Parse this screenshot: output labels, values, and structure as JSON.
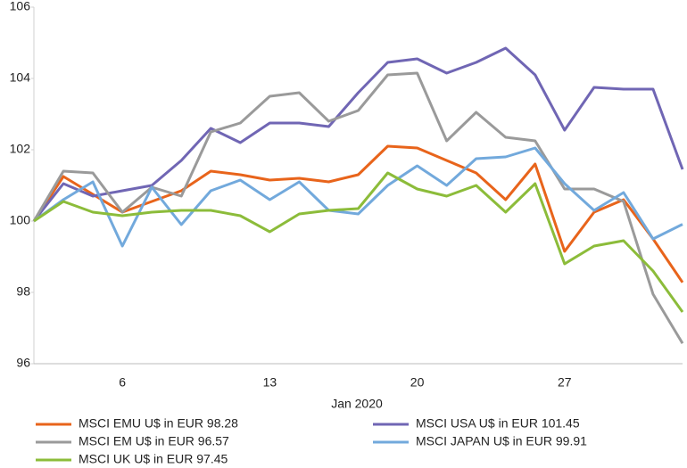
{
  "chart_data": {
    "type": "line",
    "x_label": "Jan 2020",
    "categories": [
      null,
      null,
      null,
      "6",
      null,
      null,
      null,
      null,
      "13",
      null,
      null,
      null,
      null,
      "20",
      null,
      null,
      null,
      null,
      "27",
      null,
      null,
      null,
      null
    ],
    "ylim": [
      96,
      106
    ],
    "yticks": [
      96,
      98,
      100,
      102,
      104,
      106
    ],
    "series": [
      {
        "name": "MSCI EMU U$ in EUR 98.28",
        "color": "#e8641b",
        "values": [
          100.0,
          101.25,
          100.75,
          100.25,
          100.55,
          100.85,
          101.4,
          101.3,
          101.15,
          101.2,
          101.1,
          101.3,
          102.1,
          102.05,
          101.7,
          101.35,
          100.6,
          101.6,
          99.15,
          100.25,
          100.6,
          99.5,
          98.28
        ]
      },
      {
        "name": "MSCI USA U$ in EUR 101.45",
        "color": "#7066b4",
        "values": [
          100.0,
          101.05,
          100.7,
          100.85,
          101.0,
          101.7,
          102.6,
          102.2,
          102.75,
          102.75,
          102.65,
          103.6,
          104.45,
          104.55,
          104.15,
          104.45,
          104.85,
          104.1,
          102.55,
          103.75,
          103.7,
          103.7,
          101.45
        ]
      },
      {
        "name": "MSCI EM U$ in EUR 96.57",
        "color": "#9a9a9a",
        "values": [
          100.0,
          101.4,
          101.35,
          100.25,
          100.95,
          100.7,
          102.5,
          102.75,
          103.5,
          103.6,
          102.8,
          103.1,
          104.1,
          104.15,
          102.25,
          103.05,
          102.35,
          102.25,
          100.9,
          100.9,
          100.55,
          97.95,
          96.57
        ]
      },
      {
        "name": "MSCI JAPAN U$ in EUR 99.91",
        "color": "#72a9dc",
        "values": [
          100.0,
          100.6,
          101.1,
          99.3,
          100.95,
          99.9,
          100.85,
          101.15,
          100.6,
          101.1,
          100.3,
          100.2,
          101.0,
          101.55,
          101.0,
          101.75,
          101.8,
          102.05,
          101.05,
          100.3,
          100.8,
          99.5,
          99.91
        ]
      },
      {
        "name": "MSCI UK U$ in EUR 97.45",
        "color": "#8cbc3a",
        "values": [
          100.0,
          100.55,
          100.25,
          100.15,
          100.25,
          100.3,
          100.3,
          100.15,
          99.7,
          100.2,
          100.3,
          100.35,
          101.35,
          100.9,
          100.7,
          101.0,
          100.25,
          101.05,
          98.8,
          99.3,
          99.45,
          98.6,
          97.45
        ]
      }
    ]
  }
}
